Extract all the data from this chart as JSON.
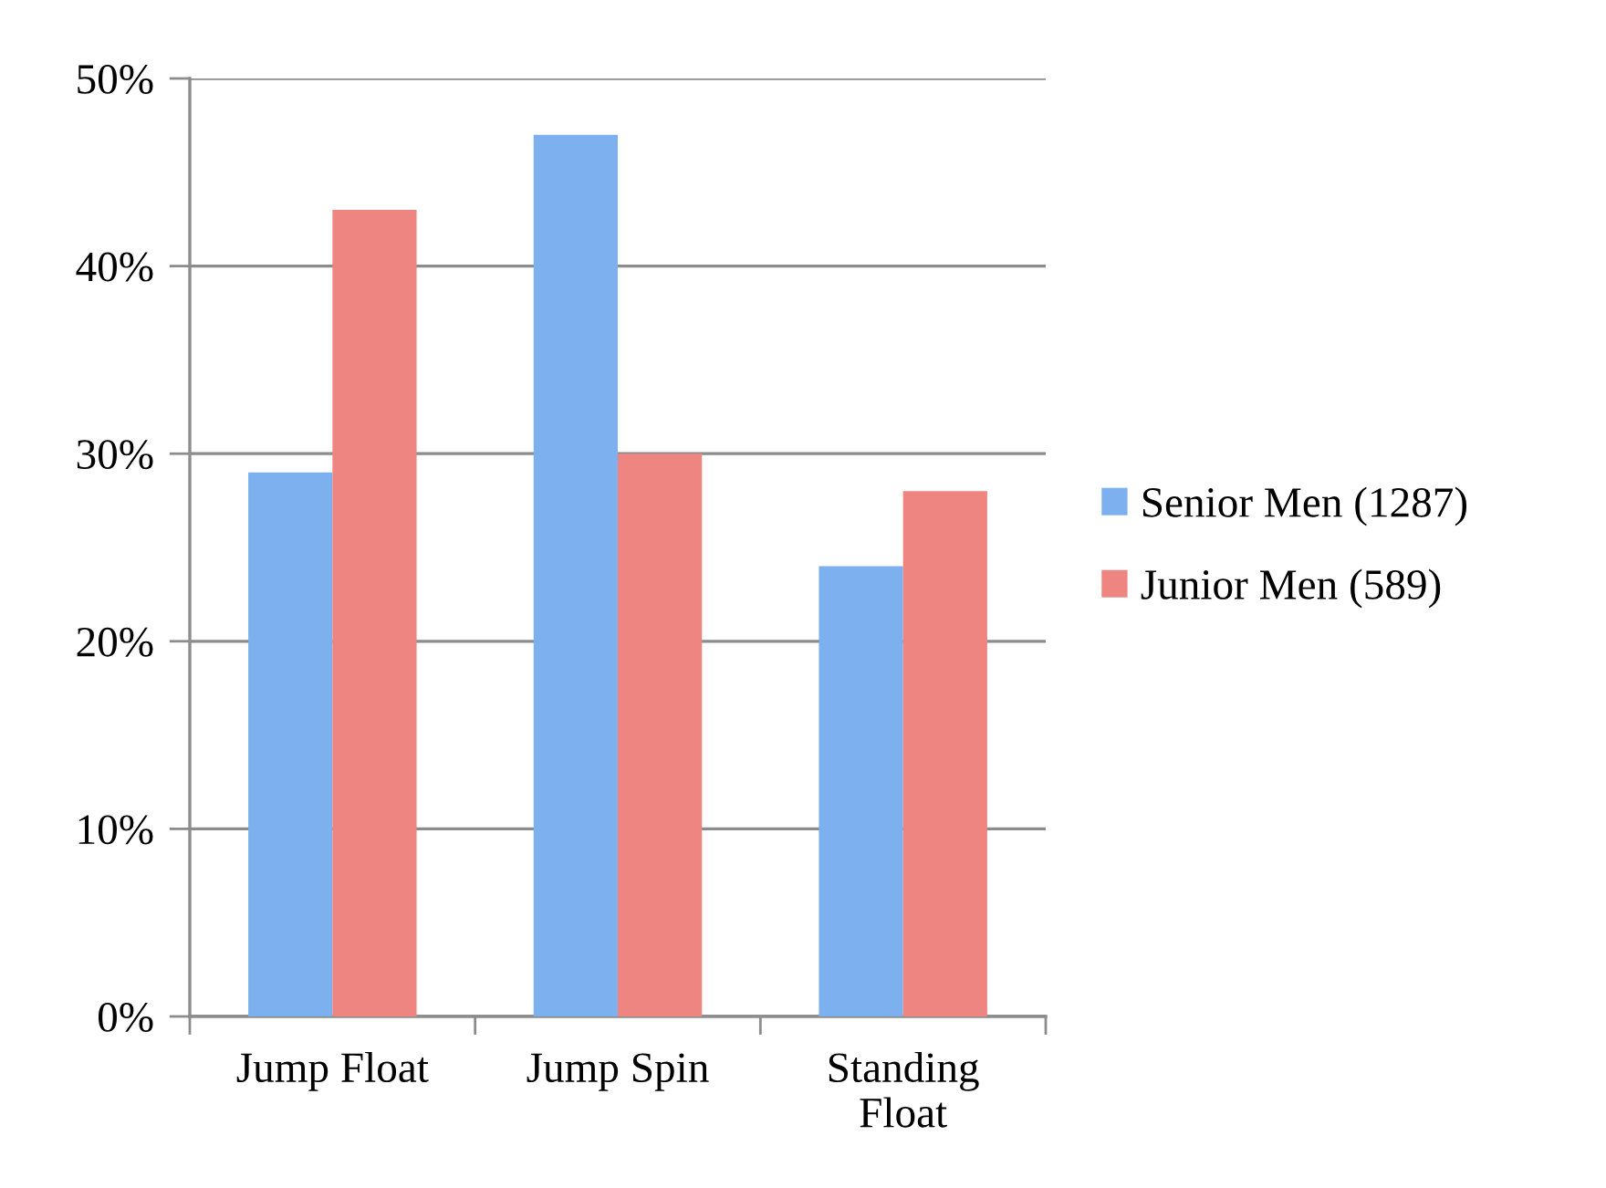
{
  "chart_data": {
    "type": "bar",
    "categories": [
      "Jump Float",
      "Jump Spin",
      "Standing\nFloat"
    ],
    "series": [
      {
        "name": "Senior Men (1287)",
        "color": "#7cb0ef",
        "values": [
          29,
          47,
          24
        ]
      },
      {
        "name": "Junior Men (589)",
        "color": "#ee8580",
        "values": [
          43,
          30,
          28
        ]
      }
    ],
    "ylim": [
      0,
      50
    ],
    "yticks": [
      {
        "value": 0,
        "label": "0%"
      },
      {
        "value": 10,
        "label": "10%"
      },
      {
        "value": 20,
        "label": "20%"
      },
      {
        "value": 30,
        "label": "30%"
      },
      {
        "value": 40,
        "label": "40%"
      },
      {
        "value": 50,
        "label": "50%"
      }
    ],
    "grid": "y",
    "legend": "right"
  }
}
